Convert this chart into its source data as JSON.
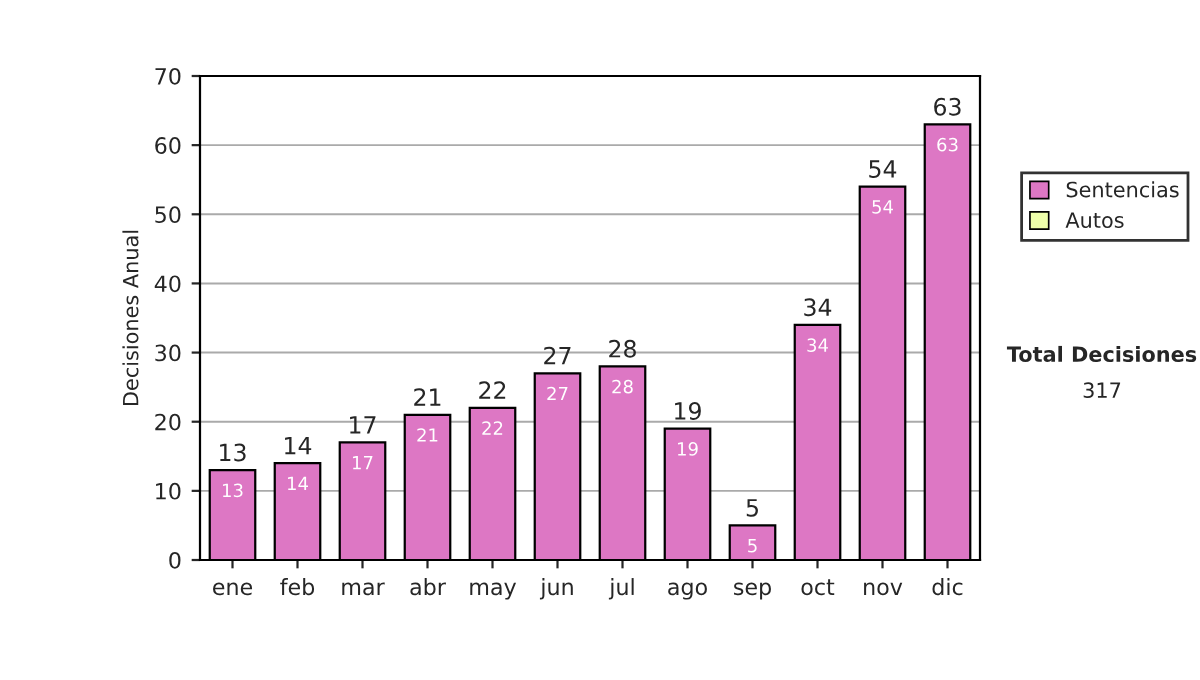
{
  "chart_data": {
    "type": "bar",
    "ylabel": "Decisiones Anual",
    "categories": [
      "ene",
      "feb",
      "mar",
      "abr",
      "may",
      "jun",
      "jul",
      "ago",
      "sep",
      "oct",
      "nov",
      "dic"
    ],
    "series": [
      {
        "name": "Sentencias",
        "color": "#dd77c4",
        "values": [
          13,
          14,
          17,
          21,
          22,
          27,
          28,
          19,
          5,
          34,
          54,
          63
        ],
        "value_labels": [
          "13",
          "14",
          "17",
          "21",
          "22",
          "27",
          "28",
          "19",
          "5",
          "34",
          "54",
          "63"
        ]
      },
      {
        "name": "Autos",
        "color": "#eeffaa",
        "values": [
          null,
          null,
          null,
          null,
          null,
          null,
          null,
          null,
          null,
          null,
          null,
          null
        ]
      }
    ],
    "stacked": true,
    "totals": [
      "13",
      "14",
      "17",
      "21",
      "22",
      "27",
      "28",
      "19",
      "5",
      "34",
      "54",
      "63"
    ],
    "ylim": [
      0,
      70
    ],
    "yticks": [
      0,
      10,
      20,
      30,
      40,
      50,
      60,
      70
    ],
    "grid": "y",
    "legend": "right",
    "annotations": [
      "Total Decisiones",
      "317"
    ]
  }
}
